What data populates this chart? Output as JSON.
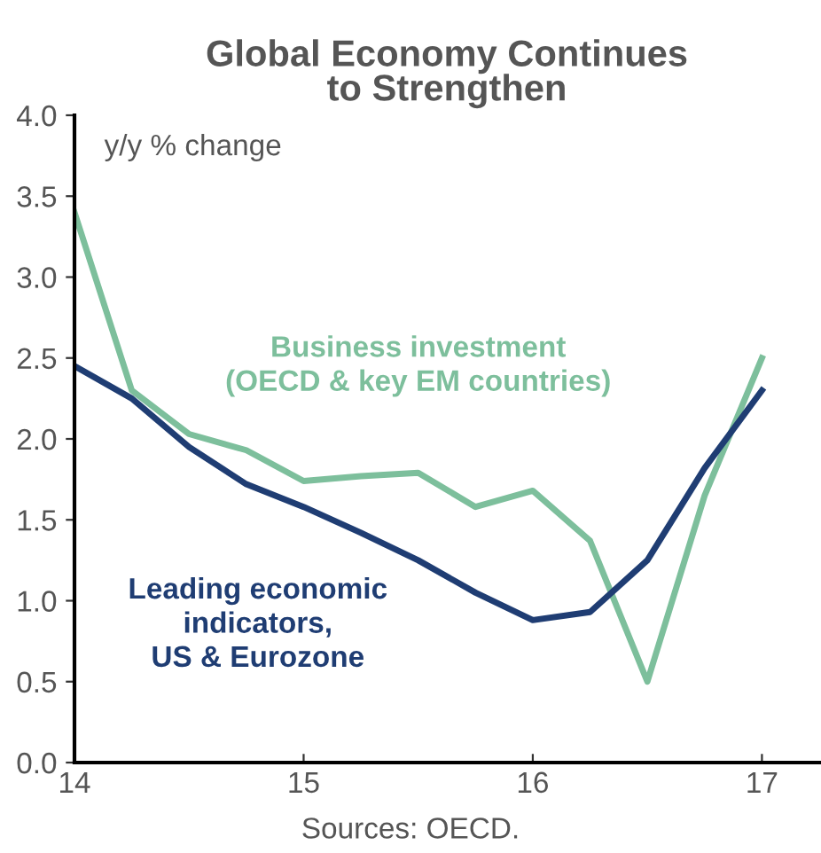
{
  "chart_data": {
    "type": "line",
    "title": "Global Economy Continues\nto Strengthen",
    "x": [
      14,
      14.25,
      14.5,
      14.75,
      15,
      15.25,
      15.5,
      15.75,
      16,
      16.25,
      16.5,
      16.75,
      17
    ],
    "series": [
      {
        "name": "Business investment\n(OECD & key EM countries)",
        "color": "#7dbf9c",
        "values": [
          3.4,
          2.3,
          2.03,
          1.93,
          1.74,
          1.77,
          1.79,
          1.58,
          1.68,
          1.37,
          0.5,
          1.65,
          2.5
        ]
      },
      {
        "name": "Leading economic\nindicators,\nUS & Eurozone",
        "color": "#1f3d73",
        "values": [
          2.45,
          2.25,
          1.95,
          1.72,
          1.58,
          1.42,
          1.25,
          1.05,
          0.88,
          0.93,
          1.25,
          1.82,
          2.3
        ]
      }
    ],
    "xlim": [
      14,
      17.25
    ],
    "xticks": [
      14,
      15,
      16,
      17
    ],
    "ylim": [
      0,
      4
    ],
    "yticks": [
      {
        "value": 0,
        "label": "0.0"
      },
      {
        "value": 0.5,
        "label": "0.5"
      },
      {
        "value": 1,
        "label": "1.0"
      },
      {
        "value": 1.5,
        "label": "1.5"
      },
      {
        "value": 2,
        "label": "2.0"
      },
      {
        "value": 2.5,
        "label": "2.5"
      },
      {
        "value": 3,
        "label": "3.0"
      },
      {
        "value": 3.5,
        "label": "3.5"
      },
      {
        "value": 4,
        "label": "4.0"
      }
    ],
    "annotations": [
      "y/y % change",
      "Sources: OECD."
    ],
    "grid": false,
    "legend": false,
    "line_style": "solid",
    "marker": "none"
  }
}
